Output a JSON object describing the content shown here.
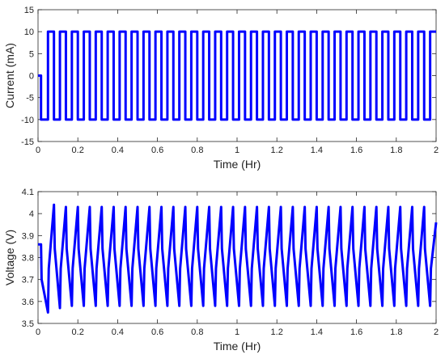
{
  "chart_data": [
    {
      "type": "line",
      "xlabel": "Time (Hr)",
      "ylabel": "Current (mA)",
      "xlim": [
        0,
        2
      ],
      "ylim": [
        -15,
        15
      ],
      "xticks": [
        0,
        0.2,
        0.4,
        0.6,
        0.8,
        1,
        1.2,
        1.4,
        1.6,
        1.8,
        2
      ],
      "yticks": [
        -15,
        -10,
        -5,
        0,
        5,
        10,
        15
      ],
      "x": [
        0,
        0.015,
        0.015,
        0.05,
        0.05,
        0.08,
        0.08,
        0.11,
        0.11,
        0.14,
        0.14,
        0.17,
        0.17,
        0.2,
        0.2,
        0.23,
        0.23,
        0.26,
        0.26,
        0.29,
        0.29,
        0.32,
        0.32,
        0.35,
        0.35,
        0.38,
        0.38,
        0.41,
        0.41,
        0.44,
        0.44,
        0.47,
        0.47,
        0.5,
        0.5,
        0.53,
        0.53,
        0.56,
        0.56,
        0.59,
        0.59,
        0.62,
        0.62,
        0.65,
        0.65,
        0.68,
        0.68,
        0.71,
        0.71,
        0.74,
        0.74,
        0.77,
        0.77,
        0.8,
        0.8,
        0.83,
        0.83,
        0.86,
        0.86,
        0.89,
        0.89,
        0.92,
        0.92,
        0.95,
        0.95,
        0.98,
        0.98,
        1.01,
        1.01,
        1.04,
        1.04,
        1.07,
        1.07,
        1.1,
        1.1,
        1.13,
        1.13,
        1.16,
        1.16,
        1.19,
        1.19,
        1.22,
        1.22,
        1.25,
        1.25,
        1.28,
        1.28,
        1.31,
        1.31,
        1.34,
        1.34,
        1.37,
        1.37,
        1.4,
        1.4,
        1.43,
        1.43,
        1.46,
        1.46,
        1.49,
        1.49,
        1.52,
        1.52,
        1.55,
        1.55,
        1.58,
        1.58,
        1.61,
        1.61,
        1.64,
        1.64,
        1.67,
        1.67,
        1.7,
        1.7,
        1.73,
        1.73,
        1.76,
        1.76,
        1.79,
        1.79,
        1.82,
        1.82,
        1.85,
        1.85,
        1.88,
        1.88,
        1.91,
        1.91,
        1.94,
        1.94,
        1.97,
        1.97,
        2
      ],
      "series": [
        {
          "name": "Current",
          "color": "#0000ff",
          "values": [
            0,
            0,
            -10,
            -10,
            10,
            10,
            -10,
            -10,
            10,
            10,
            -10,
            -10,
            10,
            10,
            -10,
            -10,
            10,
            10,
            -10,
            -10,
            10,
            10,
            -10,
            -10,
            10,
            10,
            -10,
            -10,
            10,
            10,
            -10,
            -10,
            10,
            10,
            -10,
            -10,
            10,
            10,
            -10,
            -10,
            10,
            10,
            -10,
            -10,
            10,
            10,
            -10,
            -10,
            10,
            10,
            -10,
            -10,
            10,
            10,
            -10,
            -10,
            10,
            10,
            -10,
            -10,
            10,
            10,
            -10,
            -10,
            10,
            10,
            -10,
            -10,
            10,
            10,
            -10,
            -10,
            10,
            10,
            -10,
            -10,
            10,
            10,
            -10,
            -10,
            10,
            10,
            -10,
            -10,
            10,
            10,
            -10,
            -10,
            10,
            10,
            -10,
            -10,
            10,
            10,
            -10,
            -10,
            10,
            10,
            -10,
            -10,
            10,
            10,
            -10,
            -10,
            10,
            10,
            -10,
            -10,
            10,
            10,
            -10,
            -10,
            10,
            10,
            -10,
            -10,
            10,
            10,
            -10,
            -10,
            10,
            10,
            -10,
            -10,
            10,
            10,
            -10,
            -10,
            10,
            10,
            -10,
            -10,
            10,
            10
          ]
        }
      ]
    },
    {
      "type": "line",
      "xlabel": "Time (Hr)",
      "ylabel": "Voltage (V)",
      "xlim": [
        0,
        2
      ],
      "ylim": [
        3.5,
        4.1
      ],
      "xticks": [
        0,
        0.2,
        0.4,
        0.6,
        0.8,
        1,
        1.2,
        1.4,
        1.6,
        1.8,
        2
      ],
      "yticks": [
        3.5,
        3.6,
        3.7,
        3.8,
        3.9,
        4,
        4.1
      ],
      "x": [
        0,
        0.015,
        0.018,
        0.05,
        0.054,
        0.08,
        0.084,
        0.11,
        0.114,
        0.14,
        0.144,
        0.17,
        0.174,
        0.2,
        0.204,
        0.23,
        0.234,
        0.26,
        0.264,
        0.29,
        0.294,
        0.32,
        0.324,
        0.35,
        0.354,
        0.38,
        0.384,
        0.41,
        0.414,
        0.44,
        0.444,
        0.47,
        0.474,
        0.5,
        0.504,
        0.53,
        0.534,
        0.56,
        0.564,
        0.59,
        0.594,
        0.62,
        0.624,
        0.65,
        0.654,
        0.68,
        0.684,
        0.71,
        0.714,
        0.74,
        0.744,
        0.77,
        0.774,
        0.8,
        0.804,
        0.83,
        0.834,
        0.86,
        0.864,
        0.89,
        0.894,
        0.92,
        0.924,
        0.95,
        0.954,
        0.98,
        0.984,
        1.01,
        1.014,
        1.04,
        1.044,
        1.07,
        1.074,
        1.1,
        1.104,
        1.13,
        1.134,
        1.16,
        1.164,
        1.19,
        1.194,
        1.22,
        1.224,
        1.25,
        1.254,
        1.28,
        1.284,
        1.31,
        1.314,
        1.34,
        1.344,
        1.37,
        1.374,
        1.4,
        1.404,
        1.43,
        1.434,
        1.46,
        1.464,
        1.49,
        1.494,
        1.52,
        1.524,
        1.55,
        1.554,
        1.58,
        1.584,
        1.61,
        1.614,
        1.64,
        1.644,
        1.67,
        1.674,
        1.7,
        1.704,
        1.73,
        1.734,
        1.76,
        1.764,
        1.79,
        1.794,
        1.82,
        1.824,
        1.85,
        1.854,
        1.88,
        1.884,
        1.91,
        1.914,
        1.94,
        1.944,
        1.97,
        1.974,
        2
      ],
      "series": [
        {
          "name": "Voltage",
          "color": "#0000ff",
          "values": [
            3.86,
            3.86,
            3.7,
            3.55,
            3.75,
            4.04,
            3.84,
            3.57,
            3.75,
            4.03,
            3.84,
            3.58,
            3.75,
            4.03,
            3.84,
            3.58,
            3.75,
            4.03,
            3.84,
            3.58,
            3.75,
            4.03,
            3.84,
            3.58,
            3.75,
            4.03,
            3.84,
            3.58,
            3.75,
            4.03,
            3.84,
            3.58,
            3.75,
            4.03,
            3.84,
            3.58,
            3.75,
            4.03,
            3.84,
            3.58,
            3.75,
            4.03,
            3.84,
            3.58,
            3.75,
            4.03,
            3.84,
            3.58,
            3.75,
            4.03,
            3.84,
            3.58,
            3.75,
            4.03,
            3.84,
            3.58,
            3.75,
            4.03,
            3.84,
            3.58,
            3.75,
            4.03,
            3.84,
            3.58,
            3.75,
            4.03,
            3.84,
            3.58,
            3.75,
            4.03,
            3.84,
            3.58,
            3.75,
            4.03,
            3.84,
            3.58,
            3.75,
            4.03,
            3.84,
            3.58,
            3.75,
            4.03,
            3.84,
            3.58,
            3.75,
            4.03,
            3.84,
            3.58,
            3.75,
            4.03,
            3.84,
            3.58,
            3.75,
            4.03,
            3.84,
            3.58,
            3.75,
            4.03,
            3.84,
            3.58,
            3.75,
            4.03,
            3.84,
            3.58,
            3.75,
            4.03,
            3.84,
            3.58,
            3.75,
            4.03,
            3.84,
            3.58,
            3.75,
            4.03,
            3.84,
            3.58,
            3.75,
            4.03,
            3.84,
            3.58,
            3.75,
            4.03,
            3.84,
            3.58,
            3.75,
            4.03,
            3.84,
            3.58,
            3.75,
            4.03,
            3.84,
            3.58,
            3.75,
            3.96
          ]
        }
      ]
    }
  ]
}
